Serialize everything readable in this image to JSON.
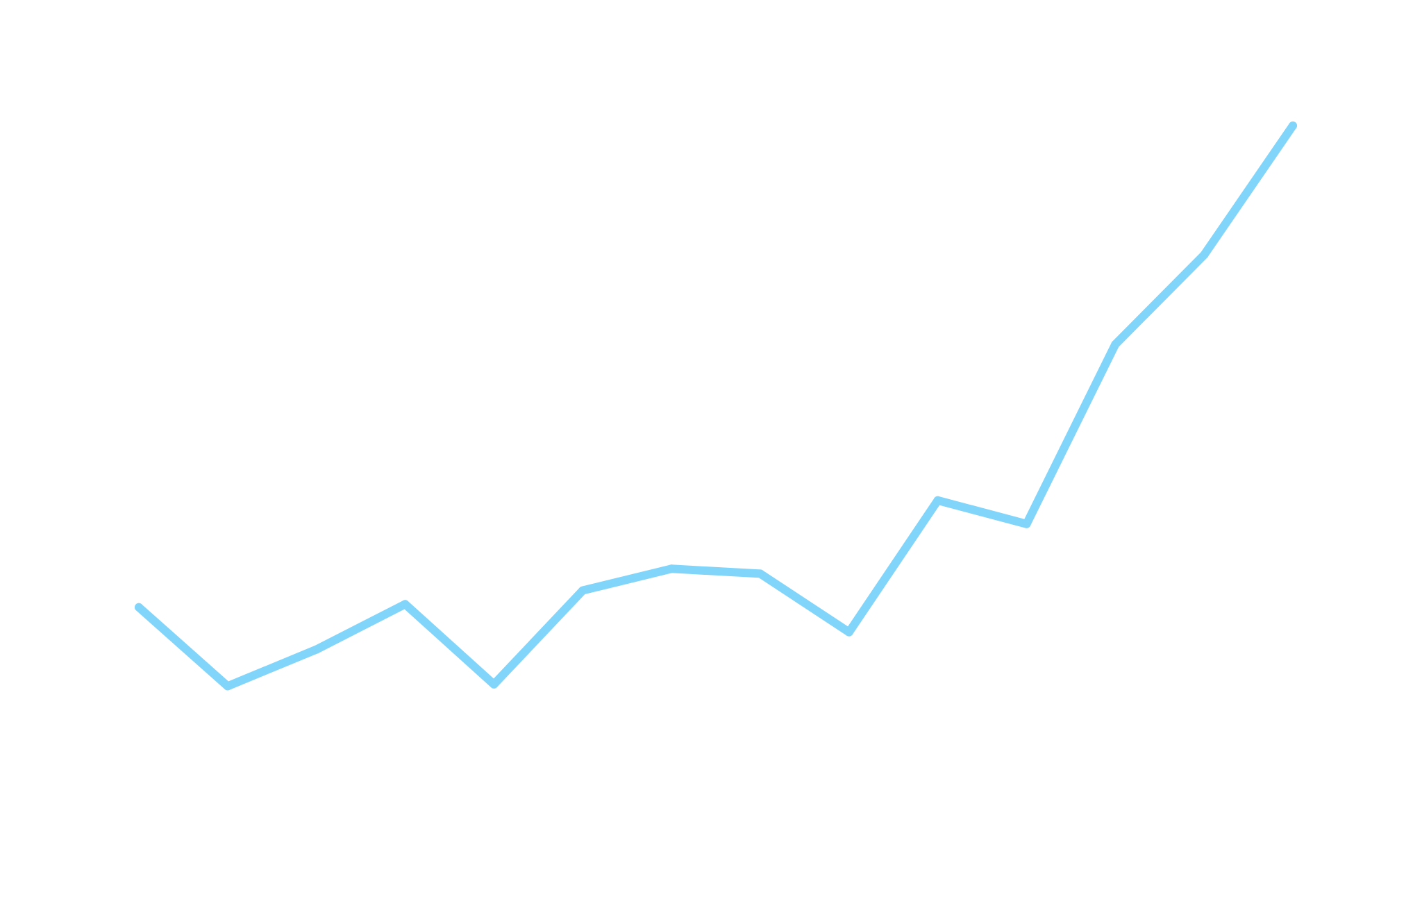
{
  "chart_data": {
    "type": "line",
    "title": "",
    "xlabel": "",
    "ylabel": "",
    "x": [
      1,
      2,
      3,
      4,
      5,
      6,
      7,
      8,
      9,
      10,
      11,
      12,
      13,
      14
    ],
    "series": [
      {
        "color": "#81d4fa",
        "values": [
          34.1,
          21.4,
          27.3,
          34.6,
          21.7,
          36.8,
          40.3,
          39.5,
          30.1,
          51.3,
          47.5,
          76.4,
          90.8,
          111.6
        ]
      }
    ],
    "xlim": [
      1,
      14
    ],
    "ylim": [
      0,
      124
    ],
    "grid": false,
    "axes_visible": false,
    "legend": "none"
  }
}
